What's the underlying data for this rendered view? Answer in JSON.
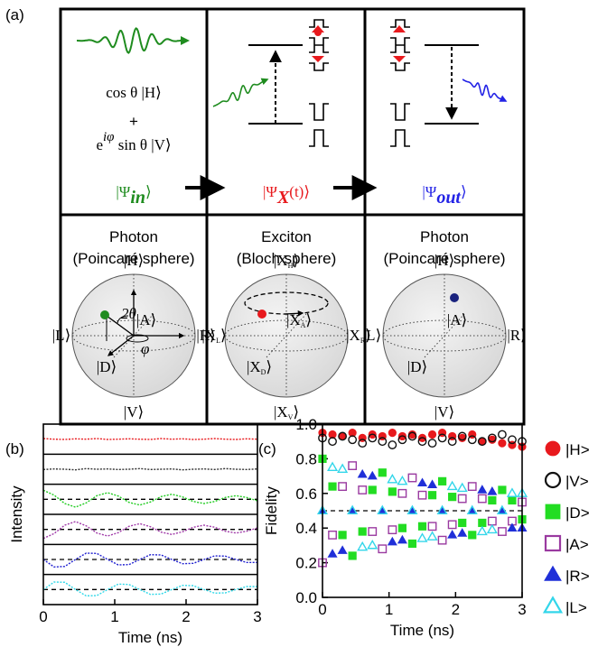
{
  "panel_a": {
    "label": "(a)",
    "input": {
      "line1": "cos θ |H⟩",
      "plus": "+",
      "line2_base": "e",
      "line2_sup": "iφ",
      "line2_rest": " sin θ |V⟩"
    },
    "states": [
      {
        "base": "|Ψ",
        "sub": "in",
        "tail": "⟩",
        "color": "#1f8c1f"
      },
      {
        "base": "|Ψ",
        "sub": "X",
        "tail": "(t)⟩",
        "color": "#e8191d"
      },
      {
        "base": "|Ψ",
        "sub": "out",
        "tail": "⟩",
        "color": "#2323e6"
      }
    ],
    "spheres": [
      {
        "title1": "Photon",
        "title2": "(Poincaré sphere)",
        "labels": {
          "top": {
            "base": "|H⟩"
          },
          "bottom": {
            "base": "|V⟩"
          },
          "left": {
            "base": "|L⟩"
          },
          "right": {
            "base": "|R⟩"
          },
          "front": {
            "base": "|D⟩"
          },
          "back": {
            "base": "|A⟩"
          }
        },
        "angle1": "2θ",
        "angle2": "φ"
      },
      {
        "title1": "Exciton",
        "title2": "(Bloch sphere)",
        "labels": {
          "top": {
            "base": "|X",
            "sub": "H",
            "tail": "⟩"
          },
          "bottom": {
            "base": "|X",
            "sub": "V",
            "tail": "⟩"
          },
          "left": {
            "base": "|X",
            "sub": "L",
            "tail": "⟩"
          },
          "right": {
            "base": "|X",
            "sub": "R",
            "tail": "⟩"
          },
          "front": {
            "base": "|X",
            "sub": "D",
            "tail": "⟩"
          },
          "back": {
            "base": "|X",
            "sub": "A",
            "tail": "⟩"
          }
        }
      },
      {
        "title1": "Photon",
        "title2": "(Poincaré sphere)",
        "labels": {
          "top": {
            "base": "|H⟩"
          },
          "bottom": {
            "base": "|V⟩"
          },
          "left": {
            "base": "|L⟩"
          },
          "right": {
            "base": "|R⟩"
          },
          "front": {
            "base": "|D⟩"
          },
          "back": {
            "base": "|A⟩"
          }
        }
      }
    ]
  },
  "chart_data": [
    {
      "type": "line",
      "panel_label": "(b)",
      "x_label": "Time (ns)",
      "y_label": "Intensity",
      "xlim": [
        0,
        3
      ],
      "xticks": [
        0,
        1,
        2,
        3
      ],
      "ylim": [
        0,
        6
      ],
      "separators": [
        1,
        2,
        3,
        4,
        5
      ],
      "reference_lines": [
        3.5,
        2.5,
        1.5,
        0.5
      ],
      "x": [
        0,
        0.15,
        0.3,
        0.45,
        0.6,
        0.75,
        0.9,
        1.05,
        1.2,
        1.35,
        1.5,
        1.65,
        1.8,
        1.95,
        2.1,
        2.25,
        2.4,
        2.55,
        2.7,
        2.85,
        3.0
      ],
      "series": [
        {
          "color": "#e8191d",
          "values": [
            5.52,
            5.5,
            5.49,
            5.51,
            5.5,
            5.52,
            5.49,
            5.5,
            5.51,
            5.5,
            5.49,
            5.52,
            5.5,
            5.51,
            5.49,
            5.5,
            5.52,
            5.5,
            5.49,
            5.51,
            5.5
          ]
        },
        {
          "color": "#333333",
          "values": [
            4.49,
            4.51,
            4.5,
            4.48,
            4.52,
            4.5,
            4.51,
            4.49,
            4.5,
            4.52,
            4.49,
            4.5,
            4.51,
            4.48,
            4.5,
            4.51,
            4.49,
            4.52,
            4.5,
            4.49,
            4.51
          ]
        },
        {
          "color": "#22cc22",
          "values": [
            3.8,
            3.64,
            3.36,
            3.24,
            3.38,
            3.62,
            3.72,
            3.61,
            3.4,
            3.31,
            3.41,
            3.59,
            3.67,
            3.58,
            3.43,
            3.36,
            3.43,
            3.56,
            3.62,
            3.56,
            3.45
          ]
        },
        {
          "color": "#a03aa8",
          "values": [
            2.2,
            2.36,
            2.64,
            2.76,
            2.62,
            2.38,
            2.28,
            2.39,
            2.6,
            2.69,
            2.59,
            2.41,
            2.33,
            2.42,
            2.57,
            2.64,
            2.57,
            2.44,
            2.38,
            2.44,
            2.55
          ]
        },
        {
          "color": "#2020d0",
          "values": [
            1.5,
            1.25,
            1.27,
            1.5,
            1.71,
            1.7,
            1.5,
            1.32,
            1.33,
            1.5,
            1.66,
            1.65,
            1.5,
            1.36,
            1.37,
            1.5,
            1.62,
            1.61,
            1.5,
            1.4,
            1.4
          ]
        },
        {
          "color": "#30d8e8",
          "values": [
            0.5,
            0.75,
            0.74,
            0.5,
            0.29,
            0.3,
            0.5,
            0.68,
            0.67,
            0.5,
            0.34,
            0.35,
            0.5,
            0.64,
            0.63,
            0.5,
            0.38,
            0.39,
            0.5,
            0.6,
            0.6
          ]
        }
      ]
    },
    {
      "type": "scatter",
      "panel_label": "(c)",
      "x_label": "Time (ns)",
      "y_label": "Fidelity",
      "xlim": [
        0,
        3
      ],
      "xticks": [
        0,
        1,
        2,
        3
      ],
      "ylim": [
        0,
        1
      ],
      "yticks": [
        {
          "value": 0,
          "label": "0.0"
        },
        0.2,
        0.4,
        0.6,
        0.8,
        {
          "value": 1,
          "label": "1.0"
        }
      ],
      "reference_lines": [
        0.5
      ],
      "legend": "right",
      "x": [
        0,
        0.15,
        0.3,
        0.45,
        0.6,
        0.75,
        0.9,
        1.05,
        1.2,
        1.35,
        1.5,
        1.65,
        1.8,
        1.95,
        2.1,
        2.25,
        2.4,
        2.55,
        2.7,
        2.85,
        3.0
      ],
      "series": [
        {
          "name": "|H>",
          "color": "#e8191d",
          "marker": "circle",
          "filled": true,
          "values": [
            0.95,
            0.94,
            0.93,
            0.95,
            0.92,
            0.94,
            0.93,
            0.95,
            0.93,
            0.94,
            0.92,
            0.94,
            0.95,
            0.93,
            0.92,
            0.94,
            0.9,
            0.91,
            0.89,
            0.88,
            0.87
          ]
        },
        {
          "name": "|V>",
          "color": "#111111",
          "marker": "circle",
          "filled": false,
          "values": [
            0.92,
            0.9,
            0.93,
            0.91,
            0.89,
            0.92,
            0.9,
            0.88,
            0.91,
            0.93,
            0.9,
            0.89,
            0.92,
            0.9,
            0.93,
            0.91,
            0.9,
            0.92,
            0.94,
            0.91,
            0.9
          ]
        },
        {
          "name": "|D>",
          "color": "#22dd22",
          "marker": "square",
          "filled": true,
          "values": [
            0.8,
            0.64,
            0.36,
            0.24,
            0.38,
            0.62,
            0.72,
            0.61,
            0.4,
            0.31,
            0.41,
            0.59,
            0.67,
            0.58,
            0.43,
            0.36,
            0.43,
            0.56,
            0.62,
            0.56,
            0.45
          ]
        },
        {
          "name": "|A>",
          "color": "#9a3aa0",
          "marker": "square",
          "filled": false,
          "values": [
            0.2,
            0.36,
            0.64,
            0.76,
            0.62,
            0.38,
            0.28,
            0.39,
            0.6,
            0.69,
            0.59,
            0.41,
            0.33,
            0.42,
            0.57,
            0.64,
            0.57,
            0.44,
            0.38,
            0.44,
            0.55
          ]
        },
        {
          "name": "|R>",
          "color": "#1f2fd8",
          "marker": "triangle",
          "filled": true,
          "values": [
            0.5,
            0.25,
            0.27,
            0.5,
            0.71,
            0.7,
            0.5,
            0.32,
            0.33,
            0.5,
            0.66,
            0.65,
            0.5,
            0.36,
            0.37,
            0.5,
            0.62,
            0.61,
            0.5,
            0.4,
            0.4
          ]
        },
        {
          "name": "|L>",
          "color": "#33d6ea",
          "marker": "triangle",
          "filled": false,
          "values": [
            0.5,
            0.75,
            0.74,
            0.5,
            0.29,
            0.3,
            0.5,
            0.68,
            0.67,
            0.5,
            0.34,
            0.35,
            0.5,
            0.64,
            0.63,
            0.5,
            0.38,
            0.39,
            0.5,
            0.6,
            0.6
          ]
        }
      ]
    }
  ]
}
